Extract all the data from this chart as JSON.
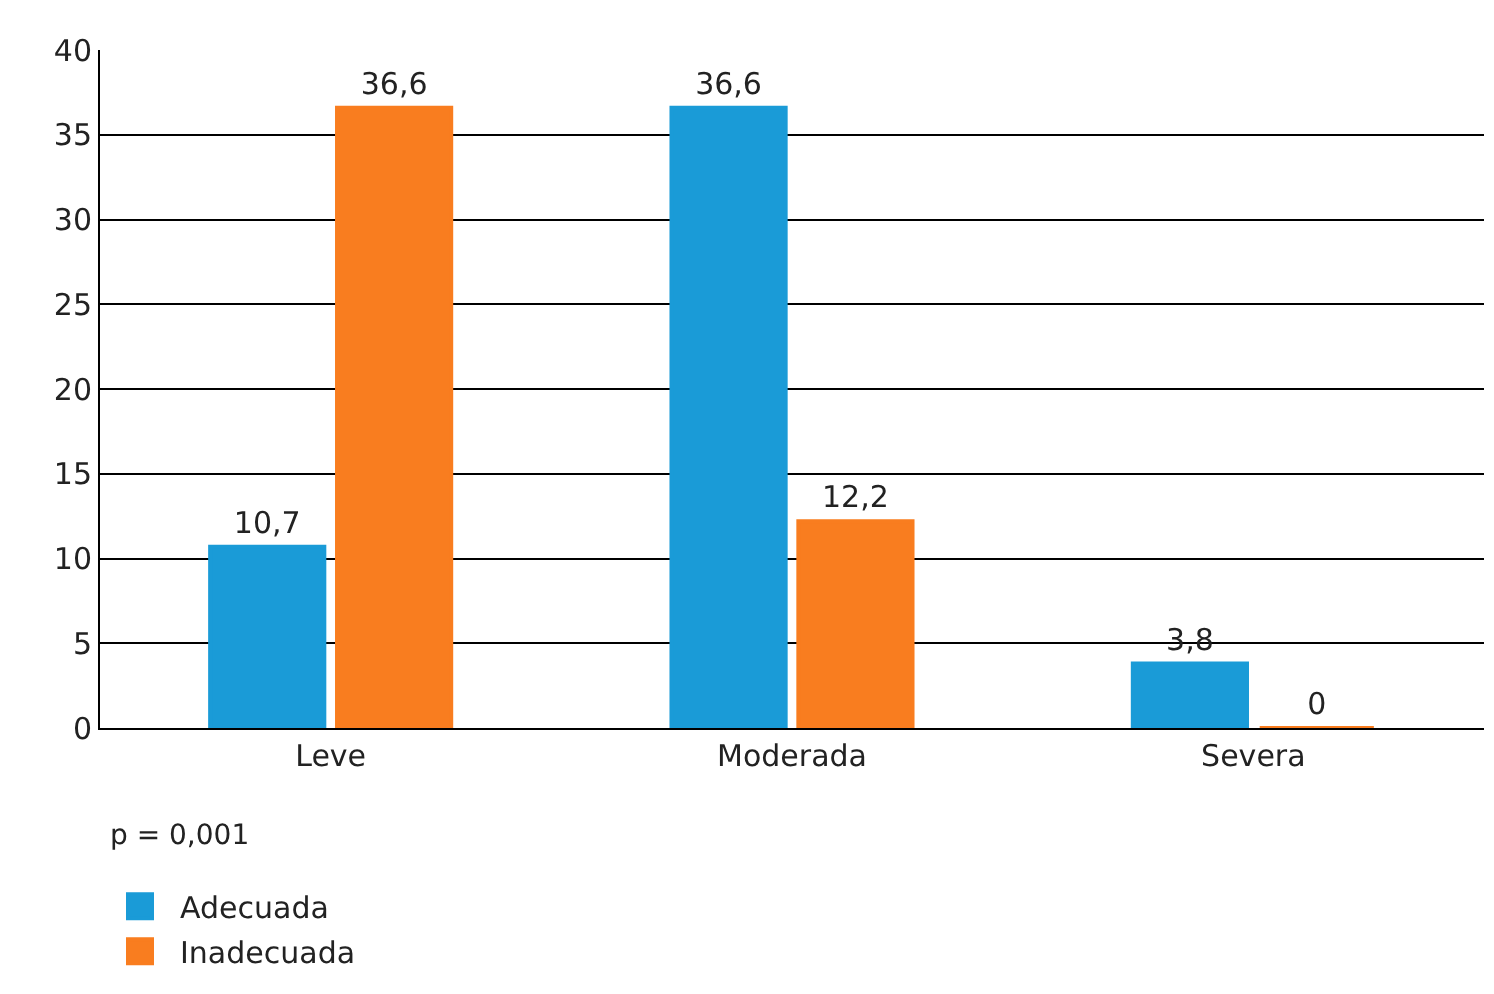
{
  "chart_data": {
    "type": "bar",
    "categories": [
      "Leve",
      "Moderada",
      "Severa"
    ],
    "series": [
      {
        "name": "Adecuada",
        "color": "#1a9bd7",
        "values": [
          10.7,
          36.6,
          3.8
        ],
        "value_labels": [
          "10,7",
          "36,6",
          "3,8"
        ]
      },
      {
        "name": "Inadecuada",
        "color": "#f97d1f",
        "values": [
          36.6,
          12.2,
          0
        ],
        "value_labels": [
          "36,6",
          "12,2",
          "0"
        ]
      }
    ],
    "ylim": [
      0,
      40
    ],
    "yticks": [
      0,
      5,
      10,
      15,
      20,
      25,
      30,
      35,
      40
    ],
    "grid": "y",
    "legend": "bottom left",
    "annotations": [
      "p = 0,001"
    ]
  }
}
